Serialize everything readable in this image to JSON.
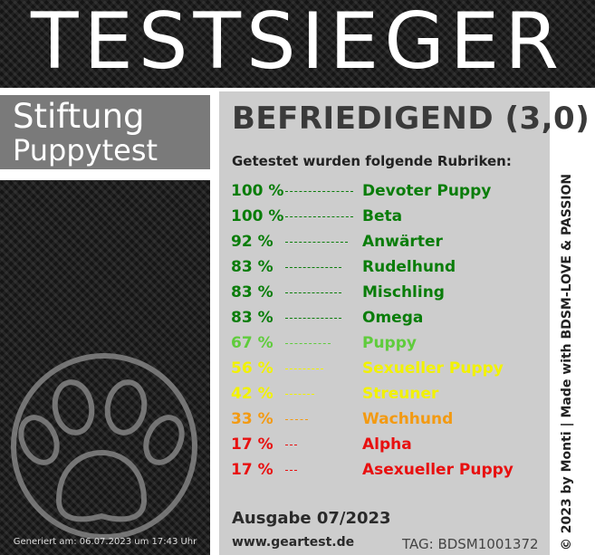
{
  "header": {
    "title": "TESTSIEGER"
  },
  "organization": {
    "line1": "Stiftung",
    "line2": "Puppytest"
  },
  "rating": "BEFRIEDIGEND (3,0)",
  "intro": "Getestet wurden folgende Rubriken:",
  "categories": [
    {
      "percent": "100 %",
      "name": "Devoter Puppy",
      "value": 100,
      "color": "#0a7d0a"
    },
    {
      "percent": "100 %",
      "name": "Beta",
      "value": 100,
      "color": "#0a7d0a"
    },
    {
      "percent": "92 %",
      "name": "Anwärter",
      "value": 92,
      "color": "#0a7d0a"
    },
    {
      "percent": "83 %",
      "name": "Rudelhund",
      "value": 83,
      "color": "#0a7d0a"
    },
    {
      "percent": "83 %",
      "name": "Mischling",
      "value": 83,
      "color": "#0a7d0a"
    },
    {
      "percent": "83 %",
      "name": "Omega",
      "value": 83,
      "color": "#0a7d0a"
    },
    {
      "percent": "67 %",
      "name": "Puppy",
      "value": 67,
      "color": "#5fcc3c"
    },
    {
      "percent": "56 %",
      "name": "Sexueller Puppy",
      "value": 56,
      "color": "#f2f200"
    },
    {
      "percent": "42 %",
      "name": "Streuner",
      "value": 42,
      "color": "#f2f200"
    },
    {
      "percent": "33 %",
      "name": "Wachhund",
      "value": 33,
      "color": "#f39a12"
    },
    {
      "percent": "17 %",
      "name": "Alpha",
      "value": 17,
      "color": "#e81010"
    },
    {
      "percent": "17 %",
      "name": "Asexueller Puppy",
      "value": 17,
      "color": "#e81010"
    }
  ],
  "footer": {
    "edition": "Ausgabe 07/2023",
    "website": "www.geartest.de",
    "tag": "TAG: BDSM1001372",
    "generated": "Generiert am: 06.07.2023 um 17:43 Uhr"
  },
  "side_text": "© 2023 by Monti | Made with BDSM-LOVE & PASSION",
  "icons": {
    "paw": "paw-icon"
  }
}
